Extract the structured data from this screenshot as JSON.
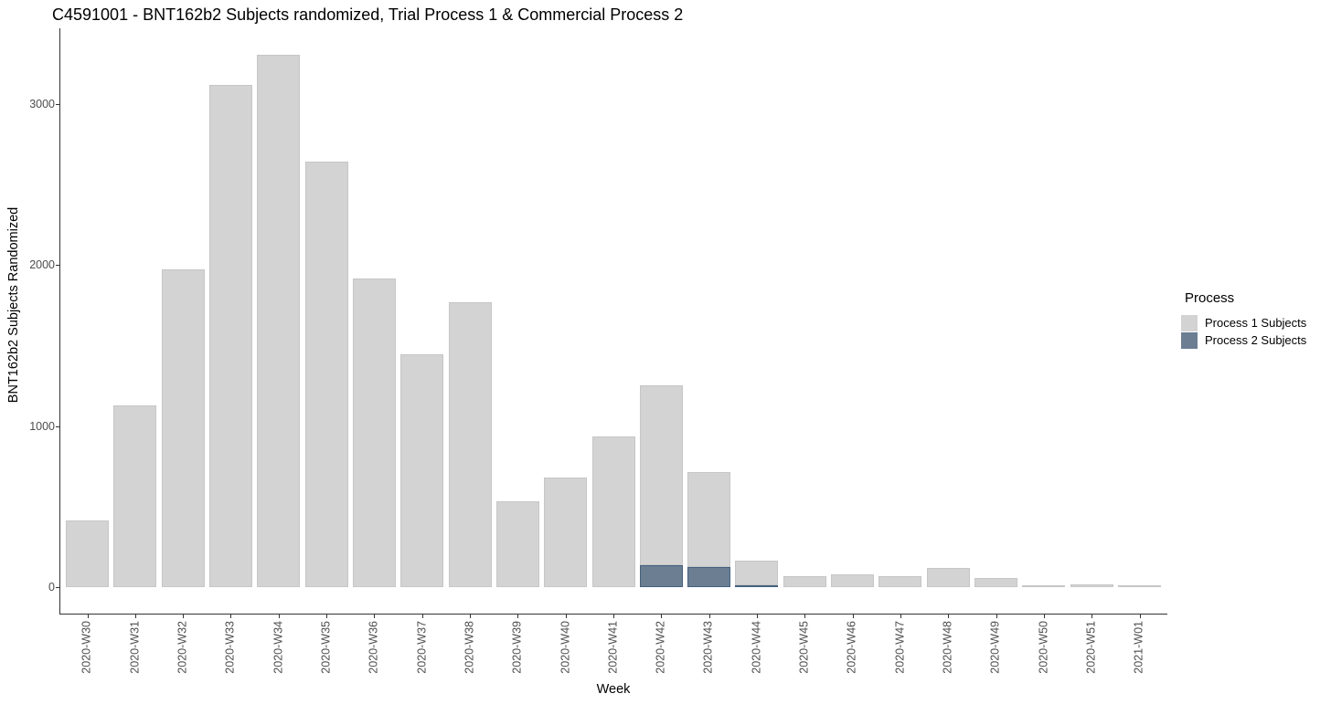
{
  "title": "C4591001 - BNT162b2 Subjects randomized, Trial Process 1 & Commercial Process 2",
  "chart_data": {
    "type": "bar",
    "stacked": true,
    "title": "C4591001 - BNT162b2 Subjects randomized, Trial Process 1 & Commercial Process 2",
    "xlabel": "Week",
    "ylabel": "BNT162b2 Subjects Randomized",
    "categories": [
      "2020-W30",
      "2020-W31",
      "2020-W32",
      "2020-W33",
      "2020-W34",
      "2020-W35",
      "2020-W36",
      "2020-W37",
      "2020-W38",
      "2020-W39",
      "2020-W40",
      "2020-W41",
      "2020-W42",
      "2020-W43",
      "2020-W44",
      "2020-W45",
      "2020-W46",
      "2020-W47",
      "2020-W48",
      "2020-W49",
      "2020-W50",
      "2020-W51",
      "2021-W01"
    ],
    "series": [
      {
        "name": "Process 1 Subjects",
        "color": "#d3d3d3",
        "border_color": "#c6c6c6",
        "values": [
          415,
          1125,
          1975,
          3120,
          3305,
          2645,
          1915,
          1445,
          1770,
          530,
          680,
          935,
          1115,
          590,
          155,
          65,
          80,
          68,
          120,
          53,
          10,
          15,
          8
        ]
      },
      {
        "name": "Process 2 Subjects",
        "color": "#6b7e92",
        "border_color": "#44617e",
        "values": [
          0,
          0,
          0,
          0,
          0,
          0,
          0,
          0,
          0,
          0,
          0,
          0,
          135,
          125,
          10,
          0,
          0,
          0,
          0,
          0,
          0,
          0,
          0
        ]
      }
    ],
    "stack_order_bottom_to_top": [
      "Process 2 Subjects",
      "Process 1 Subjects"
    ],
    "yticks": [
      "0",
      "1000",
      "2000",
      "3000"
    ],
    "ylim": [
      0,
      3470
    ],
    "grid": false,
    "legend": {
      "title": "Process",
      "position": "right"
    }
  },
  "legend": {
    "title": "Process",
    "items": [
      {
        "label": "Process 1 Subjects",
        "color": "#d3d3d3"
      },
      {
        "label": "Process 2 Subjects",
        "color": "#6b7e92"
      }
    ]
  },
  "colors": {
    "background": "#ffffff",
    "axis_line": "#333333",
    "axis_text": "#4d4d4d",
    "process1": "#d3d3d3",
    "process2": "#6b7e92"
  }
}
